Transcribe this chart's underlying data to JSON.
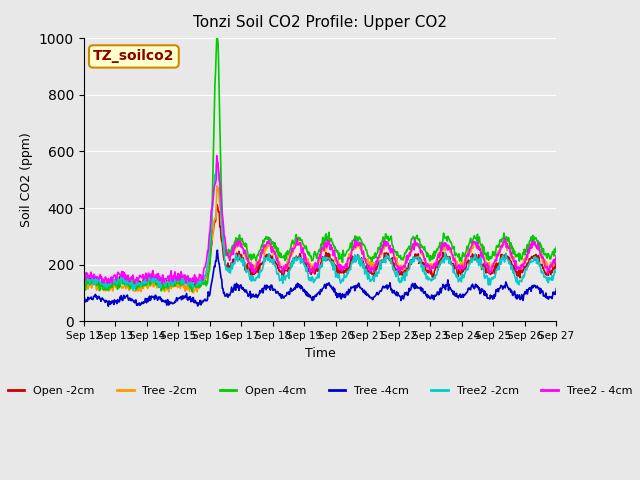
{
  "title": "Tonzi Soil CO2 Profile: Upper CO2",
  "ylabel": "Soil CO2 (ppm)",
  "xlabel": "Time",
  "watermark": "TZ_soilco2",
  "ylim": [
    0,
    1000
  ],
  "background_color": "#e8e8e8",
  "x_tick_labels": [
    "Sep 12",
    "Sep 13",
    "Sep 14",
    "Sep 15",
    "Sep 16",
    "Sep 17",
    "Sep 18",
    "Sep 19",
    "Sep 20",
    "Sep 21",
    "Sep 22",
    "Sep 23",
    "Sep 24",
    "Sep 25",
    "Sep 26",
    "Sep 27"
  ],
  "legend_labels": [
    "Open -2cm",
    "Tree -2cm",
    "Open -4cm",
    "Tree -4cm",
    "Tree2 -2cm",
    "Tree2 - 4cm"
  ],
  "legend_colors": [
    "#cc0000",
    "#ff9900",
    "#00cc00",
    "#0000cc",
    "#00cccc",
    "#ff00ff"
  ]
}
